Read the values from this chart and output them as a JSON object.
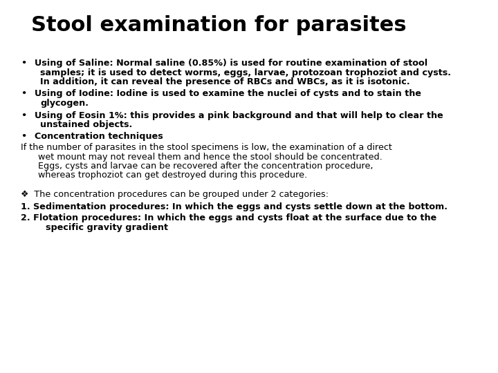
{
  "title": "Stool examination for parasites",
  "background_color": "#ffffff",
  "text_color": "#000000",
  "title_fontsize": 22,
  "body_fontsize": 9.2,
  "bullet1_line1": "Using of Saline: Normal saline (0.85%) is used for routine examination of stool",
  "bullet1_line2": "samples; it is used to detect worms, eggs, larvae, protozoan trophoziot and cysts.",
  "bullet1_line3": "In addition, it can reveal the presence of RBCs and WBCs, as it is isotonic.",
  "bullet2_line1": "Using of Iodine: Iodine is used to examine the nuclei of cysts and to stain the",
  "bullet2_line2": "glycogen.",
  "bullet3_line1": "Using of Eosin 1%: this provides a pink background and that will help to clear the",
  "bullet3_line2": "unstained objects.",
  "bullet4": "Concentration techniques",
  "para1_line1": "If the number of parasites in the stool specimens is low, the examination of a direct",
  "para1_line2": "wet mount may not reveal them and hence the stool should be concentrated.",
  "para1_line3": "Eggs, cysts and larvae can be recovered after the concentration procedure,",
  "para1_line4": "whereas trophoziot can get destroyed during this procedure.",
  "diamond_line": "❖  The concentration procedures can be grouped under 2 categories:",
  "num1": "1. Sedimentation procedures: In which the eggs and cysts settle down at the bottom.",
  "num2_line1": "2. Flotation procedures: In which the eggs and cysts float at the surface due to the",
  "num2_line2": "        specific gravity gradient"
}
